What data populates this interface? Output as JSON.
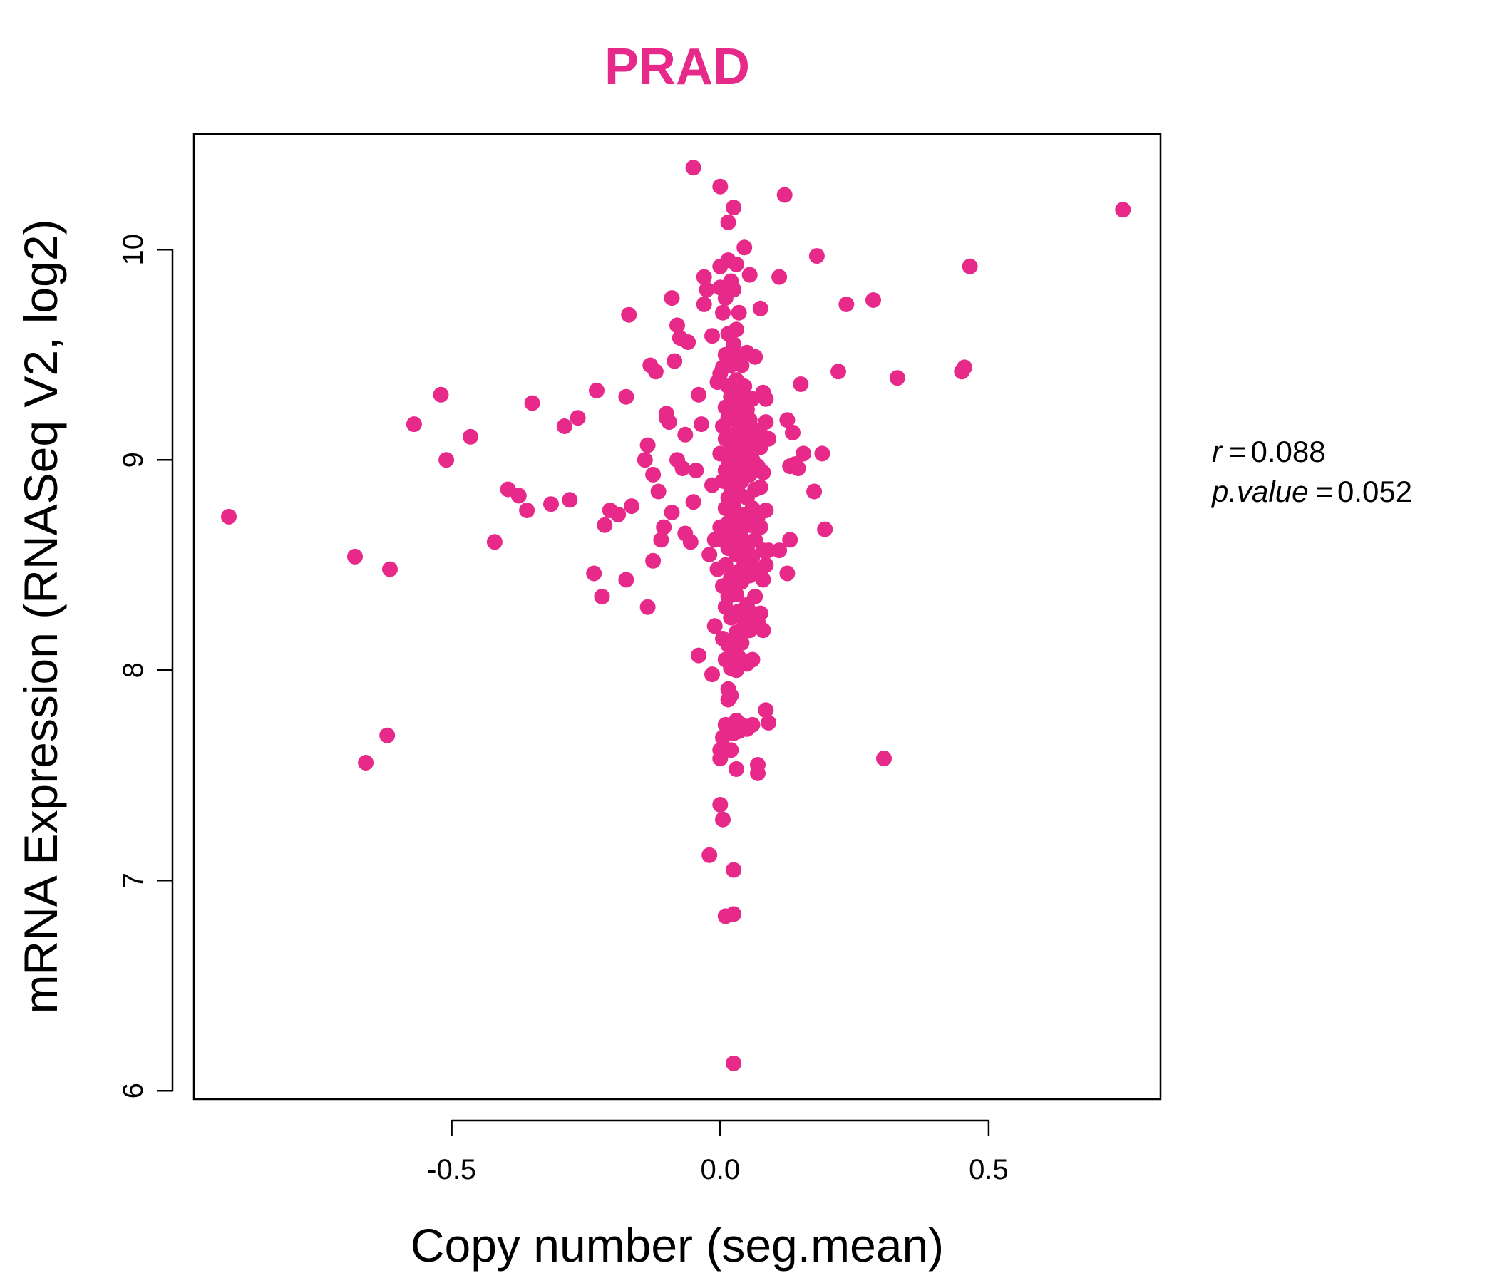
{
  "chart_data": {
    "type": "scatter",
    "title": "PRAD",
    "xlabel": "Copy number (seg.mean)",
    "ylabel": "mRNA Expression (RNASeq V2, log2)",
    "xlim": [
      -0.98,
      0.82
    ],
    "ylim": [
      5.96,
      10.55
    ],
    "xticks": [
      -0.5,
      0.0,
      0.5
    ],
    "xtick_labels": [
      "-0.5",
      "0.0",
      "0.5"
    ],
    "yticks": [
      6,
      7,
      8,
      9,
      10
    ],
    "ytick_labels": [
      "6",
      "7",
      "8",
      "9",
      "10"
    ],
    "grid": false,
    "legend": "none",
    "annotations": {
      "r_label": "r",
      "r_value": "0.088",
      "p_label": "p.value",
      "p_value": "0.052"
    },
    "colors": {
      "points": "#E7298A",
      "axis": "#000000"
    },
    "points": [
      [
        -0.915,
        8.73
      ],
      [
        -0.68,
        8.54
      ],
      [
        -0.615,
        8.48
      ],
      [
        -0.66,
        7.56
      ],
      [
        -0.62,
        7.69
      ],
      [
        -0.57,
        9.17
      ],
      [
        -0.52,
        9.31
      ],
      [
        -0.51,
        9.0
      ],
      [
        -0.465,
        9.11
      ],
      [
        -0.42,
        8.61
      ],
      [
        -0.395,
        8.86
      ],
      [
        -0.375,
        8.83
      ],
      [
        -0.36,
        8.76
      ],
      [
        -0.35,
        9.27
      ],
      [
        -0.315,
        8.79
      ],
      [
        -0.29,
        9.16
      ],
      [
        -0.28,
        8.81
      ],
      [
        -0.265,
        9.2
      ],
      [
        -0.235,
        8.46
      ],
      [
        -0.23,
        9.33
      ],
      [
        -0.22,
        8.35
      ],
      [
        -0.215,
        8.69
      ],
      [
        -0.205,
        8.76
      ],
      [
        -0.19,
        8.74
      ],
      [
        -0.175,
        8.43
      ],
      [
        -0.175,
        9.3
      ],
      [
        -0.17,
        9.69
      ],
      [
        -0.165,
        8.78
      ],
      [
        -0.14,
        9.0
      ],
      [
        -0.135,
        8.3
      ],
      [
        -0.135,
        9.07
      ],
      [
        -0.13,
        9.45
      ],
      [
        -0.125,
        8.52
      ],
      [
        -0.125,
        8.93
      ],
      [
        -0.12,
        9.42
      ],
      [
        -0.115,
        8.85
      ],
      [
        -0.11,
        8.62
      ],
      [
        -0.105,
        8.68
      ],
      [
        -0.1,
        9.2
      ],
      [
        -0.1,
        9.22
      ],
      [
        -0.095,
        9.18
      ],
      [
        -0.09,
        8.75
      ],
      [
        -0.09,
        9.77
      ],
      [
        -0.085,
        9.47
      ],
      [
        -0.08,
        9.64
      ],
      [
        -0.08,
        9.0
      ],
      [
        -0.075,
        9.58
      ],
      [
        -0.07,
        8.96
      ],
      [
        -0.065,
        8.65
      ],
      [
        -0.065,
        9.12
      ],
      [
        -0.06,
        9.56
      ],
      [
        -0.055,
        8.61
      ],
      [
        -0.05,
        8.8
      ],
      [
        -0.045,
        8.95
      ],
      [
        -0.05,
        10.39
      ],
      [
        -0.04,
        8.07
      ],
      [
        -0.04,
        9.31
      ],
      [
        -0.035,
        9.17
      ],
      [
        -0.03,
        9.87
      ],
      [
        -0.03,
        9.74
      ],
      [
        -0.025,
        9.81
      ],
      [
        -0.02,
        8.55
      ],
      [
        -0.015,
        9.59
      ],
      [
        -0.015,
        8.88
      ],
      [
        -0.01,
        8.62
      ],
      [
        -0.005,
        8.48
      ],
      [
        -0.02,
        7.12
      ],
      [
        -0.015,
        7.98
      ],
      [
        -0.01,
        8.21
      ],
      [
        -0.005,
        9.37
      ],
      [
        0.0,
        8.68
      ],
      [
        0.0,
        9.03
      ],
      [
        0.0,
        9.41
      ],
      [
        0.0,
        9.82
      ],
      [
        0.0,
        9.92
      ],
      [
        0.005,
        8.15
      ],
      [
        0.005,
        8.4
      ],
      [
        0.005,
        8.62
      ],
      [
        0.005,
        8.9
      ],
      [
        0.005,
        9.16
      ],
      [
        0.005,
        9.44
      ],
      [
        0.005,
        9.7
      ],
      [
        0.0,
        7.36
      ],
      [
        0.0,
        7.58
      ],
      [
        0.0,
        7.62
      ],
      [
        0.005,
        7.68
      ],
      [
        0.005,
        7.29
      ],
      [
        0.0,
        10.3
      ],
      [
        0.01,
        8.05
      ],
      [
        0.01,
        8.3
      ],
      [
        0.01,
        8.5
      ],
      [
        0.01,
        8.77
      ],
      [
        0.01,
        8.95
      ],
      [
        0.01,
        9.1
      ],
      [
        0.01,
        9.25
      ],
      [
        0.01,
        9.5
      ],
      [
        0.01,
        9.77
      ],
      [
        0.01,
        6.83
      ],
      [
        0.01,
        7.74
      ],
      [
        0.015,
        7.86
      ],
      [
        0.015,
        7.91
      ],
      [
        0.015,
        8.12
      ],
      [
        0.015,
        8.35
      ],
      [
        0.015,
        8.58
      ],
      [
        0.015,
        8.7
      ],
      [
        0.015,
        8.82
      ],
      [
        0.015,
        9.0
      ],
      [
        0.015,
        9.2
      ],
      [
        0.015,
        9.35
      ],
      [
        0.015,
        9.6
      ],
      [
        0.015,
        9.95
      ],
      [
        0.015,
        10.13
      ],
      [
        0.02,
        7.62
      ],
      [
        0.02,
        7.88
      ],
      [
        0.02,
        8.01
      ],
      [
        0.02,
        8.25
      ],
      [
        0.02,
        8.44
      ],
      [
        0.02,
        8.66
      ],
      [
        0.02,
        8.87
      ],
      [
        0.02,
        9.05
      ],
      [
        0.02,
        9.3
      ],
      [
        0.02,
        9.45
      ],
      [
        0.02,
        9.85
      ],
      [
        0.025,
        6.84
      ],
      [
        0.025,
        7.05
      ],
      [
        0.025,
        7.7
      ],
      [
        0.025,
        8.1
      ],
      [
        0.025,
        8.4
      ],
      [
        0.025,
        8.6
      ],
      [
        0.025,
        8.79
      ],
      [
        0.025,
        8.98
      ],
      [
        0.025,
        9.12
      ],
      [
        0.025,
        9.27
      ],
      [
        0.025,
        9.55
      ],
      [
        0.025,
        9.81
      ],
      [
        0.025,
        10.2
      ],
      [
        0.025,
        6.13
      ],
      [
        0.03,
        7.53
      ],
      [
        0.03,
        7.76
      ],
      [
        0.03,
        8.0
      ],
      [
        0.03,
        8.18
      ],
      [
        0.03,
        8.36
      ],
      [
        0.03,
        8.55
      ],
      [
        0.03,
        8.72
      ],
      [
        0.03,
        8.92
      ],
      [
        0.03,
        9.08
      ],
      [
        0.03,
        9.22
      ],
      [
        0.03,
        9.38
      ],
      [
        0.03,
        9.62
      ],
      [
        0.03,
        9.93
      ],
      [
        0.035,
        7.71
      ],
      [
        0.035,
        8.06
      ],
      [
        0.035,
        8.28
      ],
      [
        0.035,
        8.47
      ],
      [
        0.035,
        8.69
      ],
      [
        0.035,
        8.84
      ],
      [
        0.035,
        9.02
      ],
      [
        0.035,
        9.17
      ],
      [
        0.035,
        9.33
      ],
      [
        0.035,
        9.49
      ],
      [
        0.035,
        9.7
      ],
      [
        0.04,
        7.74
      ],
      [
        0.04,
        8.13
      ],
      [
        0.04,
        8.42
      ],
      [
        0.04,
        8.63
      ],
      [
        0.04,
        8.9
      ],
      [
        0.04,
        9.1
      ],
      [
        0.04,
        9.28
      ],
      [
        0.04,
        9.45
      ],
      [
        0.045,
        8.22
      ],
      [
        0.045,
        8.51
      ],
      [
        0.045,
        8.74
      ],
      [
        0.045,
        8.96
      ],
      [
        0.045,
        9.14
      ],
      [
        0.045,
        9.35
      ],
      [
        0.045,
        10.01
      ],
      [
        0.05,
        7.72
      ],
      [
        0.05,
        8.03
      ],
      [
        0.05,
        8.31
      ],
      [
        0.05,
        8.58
      ],
      [
        0.05,
        8.82
      ],
      [
        0.05,
        9.05
      ],
      [
        0.05,
        9.24
      ],
      [
        0.05,
        9.51
      ],
      [
        0.055,
        8.19
      ],
      [
        0.055,
        8.45
      ],
      [
        0.055,
        8.69
      ],
      [
        0.055,
        8.93
      ],
      [
        0.055,
        9.19
      ],
      [
        0.055,
        9.88
      ],
      [
        0.06,
        7.74
      ],
      [
        0.06,
        8.05
      ],
      [
        0.06,
        8.27
      ],
      [
        0.06,
        8.54
      ],
      [
        0.06,
        8.77
      ],
      [
        0.06,
        9.0
      ],
      [
        0.06,
        9.29
      ],
      [
        0.065,
        8.35
      ],
      [
        0.065,
        8.62
      ],
      [
        0.065,
        8.86
      ],
      [
        0.065,
        9.1
      ],
      [
        0.065,
        9.49
      ],
      [
        0.07,
        7.51
      ],
      [
        0.07,
        7.55
      ],
      [
        0.07,
        8.23
      ],
      [
        0.07,
        8.48
      ],
      [
        0.07,
        8.73
      ],
      [
        0.07,
        8.97
      ],
      [
        0.07,
        9.14
      ],
      [
        0.075,
        8.27
      ],
      [
        0.075,
        8.46
      ],
      [
        0.075,
        8.68
      ],
      [
        0.075,
        8.87
      ],
      [
        0.075,
        9.06
      ],
      [
        0.075,
        9.72
      ],
      [
        0.08,
        8.19
      ],
      [
        0.08,
        8.43
      ],
      [
        0.08,
        8.57
      ],
      [
        0.08,
        8.94
      ],
      [
        0.08,
        9.11
      ],
      [
        0.08,
        9.32
      ],
      [
        0.085,
        7.81
      ],
      [
        0.085,
        8.5
      ],
      [
        0.085,
        8.76
      ],
      [
        0.085,
        9.18
      ],
      [
        0.085,
        9.29
      ],
      [
        0.09,
        7.75
      ],
      [
        0.09,
        8.57
      ],
      [
        0.09,
        9.1
      ],
      [
        0.11,
        8.57
      ],
      [
        0.11,
        9.87
      ],
      [
        0.12,
        10.26
      ],
      [
        0.125,
        8.46
      ],
      [
        0.125,
        9.19
      ],
      [
        0.13,
        8.62
      ],
      [
        0.13,
        8.97
      ],
      [
        0.135,
        9.13
      ],
      [
        0.14,
        8.98
      ],
      [
        0.145,
        8.96
      ],
      [
        0.15,
        9.36
      ],
      [
        0.155,
        9.03
      ],
      [
        0.175,
        8.85
      ],
      [
        0.18,
        9.97
      ],
      [
        0.19,
        9.03
      ],
      [
        0.195,
        8.67
      ],
      [
        0.22,
        9.42
      ],
      [
        0.235,
        9.74
      ],
      [
        0.285,
        9.76
      ],
      [
        0.305,
        7.58
      ],
      [
        0.33,
        9.39
      ],
      [
        0.45,
        9.42
      ],
      [
        0.455,
        9.44
      ],
      [
        0.465,
        9.92
      ],
      [
        0.75,
        10.19
      ]
    ]
  }
}
